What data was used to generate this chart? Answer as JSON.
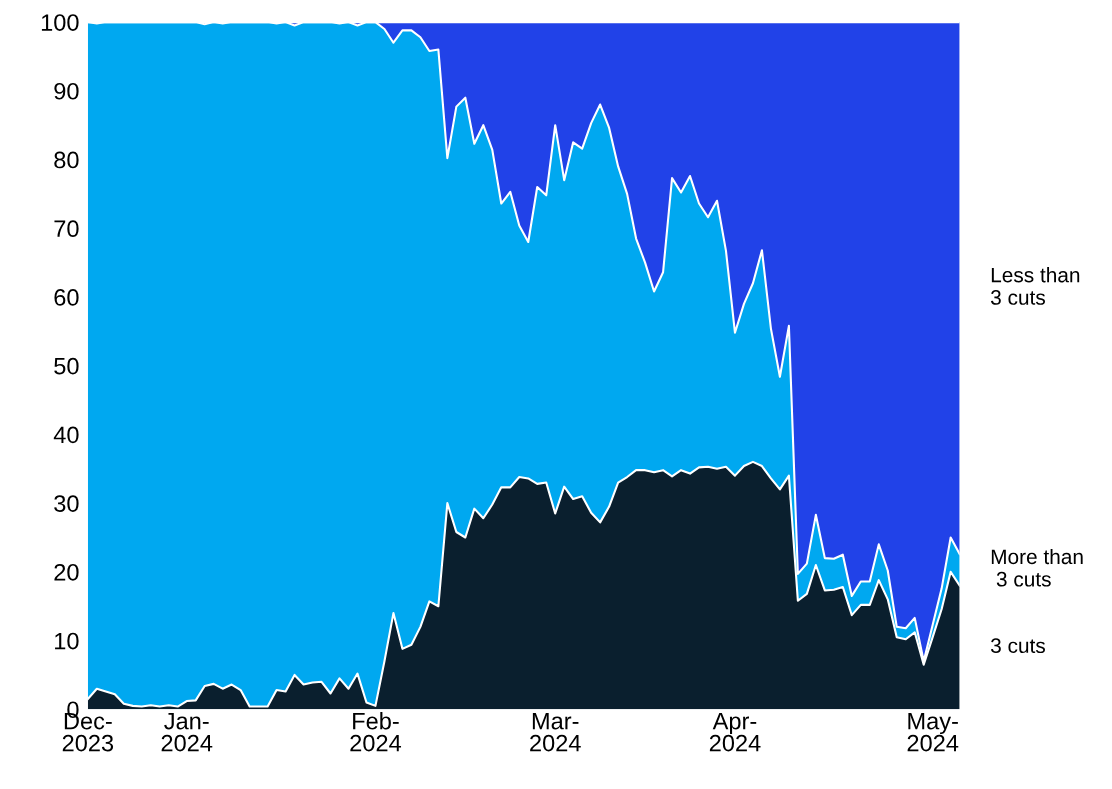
{
  "chart_data": {
    "type": "area",
    "stacked": true,
    "categories": [
      "Dec-\n2023",
      null,
      null,
      null,
      null,
      null,
      null,
      null,
      null,
      null,
      null,
      "Jan-\n2024",
      null,
      null,
      null,
      null,
      null,
      null,
      null,
      null,
      null,
      null,
      null,
      null,
      null,
      null,
      null,
      null,
      null,
      null,
      null,
      null,
      "Feb-\n2024",
      null,
      null,
      null,
      null,
      null,
      null,
      null,
      null,
      null,
      null,
      null,
      null,
      null,
      null,
      null,
      null,
      null,
      null,
      null,
      "Mar-\n2024",
      null,
      null,
      null,
      null,
      null,
      null,
      null,
      null,
      null,
      null,
      null,
      null,
      null,
      null,
      null,
      null,
      null,
      null,
      null,
      "Apr-\n2024",
      null,
      null,
      null,
      null,
      null,
      null,
      null,
      null,
      null,
      null,
      null,
      null,
      null,
      null,
      null,
      null,
      null,
      null,
      null,
      null,
      null,
      "May-\n2024",
      null,
      null,
      null
    ],
    "ylim": [
      0,
      100
    ],
    "yticks": [
      0,
      10,
      20,
      30,
      40,
      50,
      60,
      70,
      80,
      90,
      100
    ],
    "series": [
      {
        "name": "3 cuts",
        "color": "#0a1f2e",
        "values": [
          1.5,
          3,
          2.6,
          2.2,
          0.8,
          0.5,
          0.4,
          0.6,
          0.4,
          0.6,
          0.4,
          1.2,
          1.3,
          3.4,
          3.7,
          3,
          3.6,
          2.8,
          0.4,
          0.4,
          0.4,
          2.8,
          2.6,
          5,
          3.6,
          3.9,
          4,
          2.3,
          4.5,
          3,
          5.2,
          1,
          0.5,
          7,
          14,
          8.8,
          9.4,
          12,
          15.7,
          15,
          30,
          25.8,
          25,
          29.2,
          27.8,
          29.8,
          32.3,
          32.3,
          33.8,
          33.6,
          32.8,
          33,
          28.5,
          32.4,
          30.6,
          31,
          28.6,
          27.2,
          29.5,
          33,
          33.8,
          34.8,
          34.8,
          34.5,
          34.8,
          33.9,
          34.8,
          34.3,
          35.2,
          35.3,
          35,
          35.3,
          34,
          35.4,
          36,
          35.4,
          33.6,
          32,
          34,
          15.8,
          16.8,
          21,
          17.3,
          17.4,
          17.8,
          13.7,
          15.2,
          15.2,
          18.8,
          16,
          10.5,
          10.2,
          11.2,
          6.5,
          10.5,
          14.6,
          20,
          18
        ]
      },
      {
        "name": "More than\n 3 cuts",
        "color": "#00a8f0",
        "values": [
          98.5,
          96.8,
          97.4,
          97.8,
          99.2,
          99.5,
          99.6,
          99.4,
          99.6,
          99.4,
          99.6,
          98.8,
          98.7,
          96.3,
          96.3,
          96.8,
          96.4,
          97.2,
          99.6,
          99.6,
          99.6,
          97,
          97.4,
          94.5,
          96.4,
          96.1,
          96,
          97.7,
          95.3,
          97,
          94.3,
          99,
          99.5,
          92,
          83,
          90,
          89.4,
          85.8,
          80.1,
          81,
          50.2,
          61.9,
          64,
          53.1,
          57.2,
          51.6,
          41.3,
          43,
          36.6,
          34.4,
          43.2,
          41.8,
          56.5,
          44.6,
          51.9,
          50.6,
          56.7,
          60.8,
          55.1,
          46,
          41.2,
          33.7,
          30.2,
          26.3,
          28.8,
          43.4,
          40.4,
          43.3,
          38.4,
          36.3,
          39,
          31.4,
          20.8,
          23.6,
          26,
          31.4,
          21.8,
          16.4,
          21.8,
          3.9,
          4.4,
          7.3,
          4.7,
          4.5,
          4.7,
          2.8,
          3.4,
          3.4,
          5.2,
          4.2,
          1.5,
          1.6,
          2.1,
          0.5,
          1.8,
          3,
          5,
          4.6
        ]
      },
      {
        "name": "Less than\n3 cuts",
        "color": "#2142e8",
        "values": [
          0,
          0.2,
          0,
          0,
          0,
          0,
          0,
          0,
          0,
          0,
          0,
          0,
          0,
          0.3,
          0,
          0.2,
          0,
          0,
          0,
          0,
          0,
          0.2,
          0,
          0.5,
          0,
          0,
          0,
          0,
          0.2,
          0,
          0.5,
          0,
          0,
          1,
          3,
          1.2,
          1.2,
          2.2,
          4.2,
          4,
          19.8,
          12.3,
          11,
          17.7,
          15,
          18.6,
          26.4,
          24.7,
          29.6,
          32,
          24,
          25.2,
          15,
          23,
          17.5,
          18.4,
          14.7,
          12,
          15.4,
          21,
          25,
          31.5,
          35,
          39.2,
          36.4,
          22.7,
          24.8,
          22.4,
          26.4,
          28.4,
          26,
          33.3,
          45.2,
          41,
          38,
          33.2,
          44.6,
          51.6,
          44.2,
          80.3,
          78.8,
          71.7,
          78,
          78.1,
          77.5,
          83.5,
          81.4,
          81.4,
          76,
          79.8,
          88,
          88.2,
          86.7,
          93,
          87.7,
          82.4,
          75,
          77.4
        ]
      }
    ]
  }
}
